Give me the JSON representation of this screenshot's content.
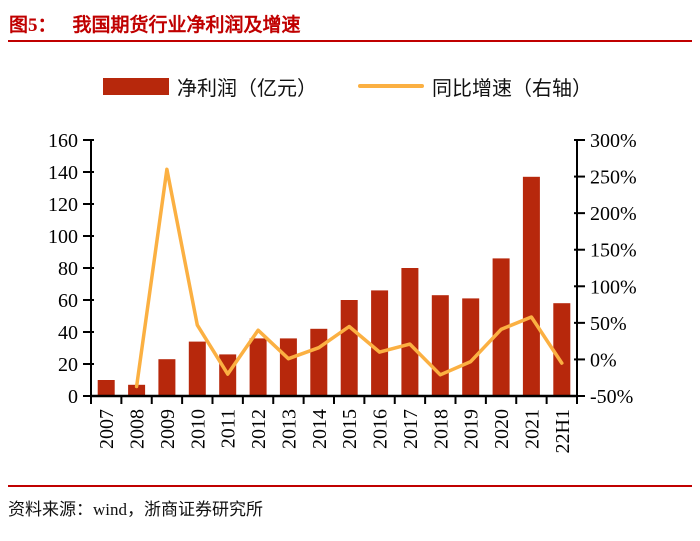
{
  "header": {
    "figure_label": "图5：",
    "title": "我国期货行业净利润及增速"
  },
  "legend": [
    {
      "label": "净利润（亿元）",
      "swatch": "bar-swatch"
    },
    {
      "label": "同比增速（右轴）",
      "swatch": "line-swatch"
    }
  ],
  "footer": {
    "source": "资料来源：wind，浙商证券研究所"
  },
  "colors": {
    "accent_red": "#C00000",
    "bar": "#B7280C",
    "line": "#FBB042",
    "axis": "#000000"
  },
  "chart_data": {
    "type": "bar",
    "subtype": "combo-bar-line-dual-axis",
    "title": "我国期货行业净利润及增速",
    "categories": [
      "2007",
      "2008",
      "2009",
      "2010",
      "2011",
      "2012",
      "2013",
      "2014",
      "2015",
      "2016",
      "2017",
      "2018",
      "2019",
      "2020",
      "2021",
      "22H1"
    ],
    "series": [
      {
        "name": "净利润（亿元）",
        "type": "bar",
        "axis": "left",
        "color": "#B7280C",
        "values": [
          10,
          7,
          23,
          34,
          26,
          36,
          36,
          42,
          60,
          66,
          80,
          63,
          61,
          86,
          137,
          58
        ]
      },
      {
        "name": "同比增速（右轴）",
        "type": "line",
        "axis": "right",
        "color": "#FBB042",
        "values": [
          null,
          -37,
          260,
          47,
          -20,
          40,
          1,
          16,
          45,
          10,
          21,
          -21,
          -3,
          41,
          58,
          -5
        ]
      }
    ],
    "left_axis": {
      "min": 0,
      "max": 160,
      "step": 20,
      "tick_values": [
        0,
        20,
        40,
        60,
        80,
        100,
        120,
        140,
        160
      ],
      "tick_labels": [
        "0",
        "20",
        "40",
        "60",
        "80",
        "100",
        "120",
        "140",
        "160"
      ]
    },
    "right_axis": {
      "min": -50,
      "max": 300,
      "step": 50,
      "tick_values": [
        -50,
        0,
        50,
        100,
        150,
        200,
        250,
        300
      ],
      "tick_labels": [
        "-50%",
        "0%",
        "50%",
        "100%",
        "150%",
        "200%",
        "250%",
        "300%"
      ]
    },
    "grid": false,
    "legend_position": "top"
  }
}
